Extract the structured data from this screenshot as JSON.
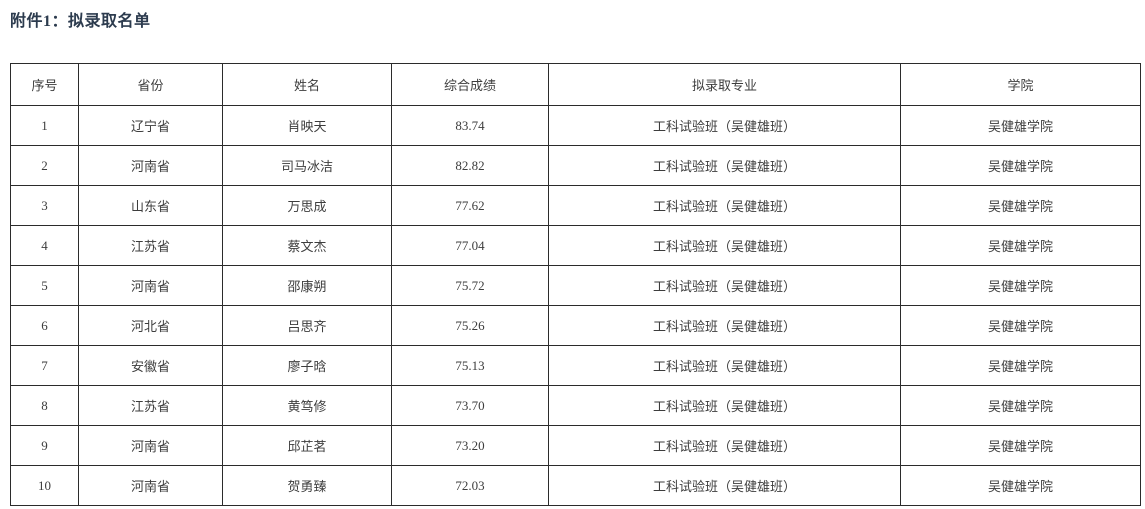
{
  "page": {
    "title": "附件1：拟录取名单",
    "title_color": "#2c3b4e"
  },
  "table": {
    "border_color": "#2b2b2b",
    "text_color": "#3d3d3d",
    "columns": [
      {
        "key": "index",
        "label": "序号"
      },
      {
        "key": "province",
        "label": "省份"
      },
      {
        "key": "name",
        "label": "姓名"
      },
      {
        "key": "score",
        "label": "综合成绩"
      },
      {
        "key": "major",
        "label": "拟录取专业"
      },
      {
        "key": "college",
        "label": "学院"
      }
    ],
    "rows": [
      [
        "1",
        "辽宁省",
        "肖映天",
        "83.74",
        "工科试验班（吴健雄班）",
        "吴健雄学院"
      ],
      [
        "2",
        "河南省",
        "司马冰洁",
        "82.82",
        "工科试验班（吴健雄班）",
        "吴健雄学院"
      ],
      [
        "3",
        "山东省",
        "万思成",
        "77.62",
        "工科试验班（吴健雄班）",
        "吴健雄学院"
      ],
      [
        "4",
        "江苏省",
        "蔡文杰",
        "77.04",
        "工科试验班（吴健雄班）",
        "吴健雄学院"
      ],
      [
        "5",
        "河南省",
        "邵康朔",
        "75.72",
        "工科试验班（吴健雄班）",
        "吴健雄学院"
      ],
      [
        "6",
        "河北省",
        "吕思齐",
        "75.26",
        "工科试验班（吴健雄班）",
        "吴健雄学院"
      ],
      [
        "7",
        "安徽省",
        "廖子晗",
        "75.13",
        "工科试验班（吴健雄班）",
        "吴健雄学院"
      ],
      [
        "8",
        "江苏省",
        "黄笃修",
        "73.70",
        "工科试验班（吴健雄班）",
        "吴健雄学院"
      ],
      [
        "9",
        "河南省",
        "邱芷茗",
        "73.20",
        "工科试验班（吴健雄班）",
        "吴健雄学院"
      ],
      [
        "10",
        "河南省",
        "贺勇臻",
        "72.03",
        "工科试验班（吴健雄班）",
        "吴健雄学院"
      ]
    ]
  }
}
